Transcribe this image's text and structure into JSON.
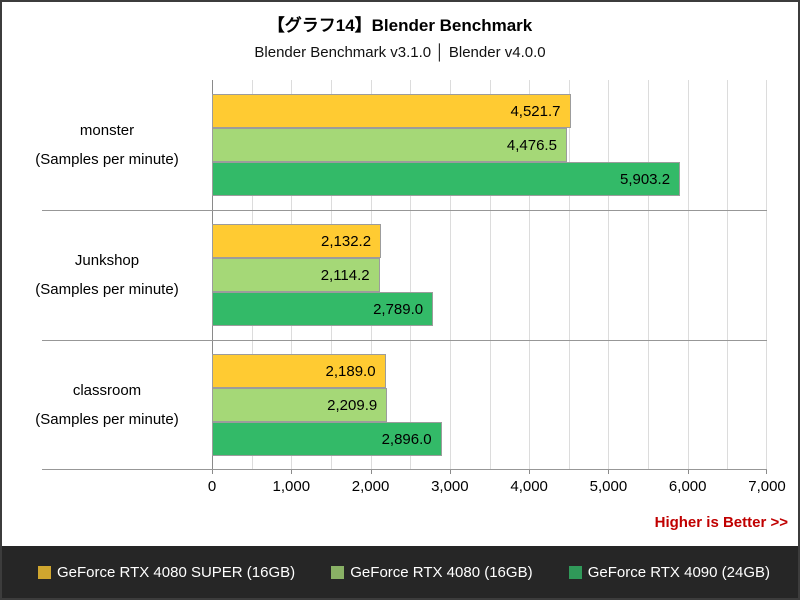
{
  "header": {
    "title": "【グラフ14】Blender Benchmark",
    "subtitle": "Blender Benchmark v3.1.0 │ Blender v4.0.0"
  },
  "note": {
    "text": "Higher is Better >>",
    "color": "#C00000"
  },
  "legend": {
    "position": "bottom",
    "background": "#262626",
    "text_color": "#FFFFFF"
  },
  "colors": {
    "gridline": "#DCDCDC",
    "axis_line": "#8A8A8A",
    "separator_line": "#979797",
    "bar_border": "#9C9C9C",
    "frame_border": "#3C3C3C"
  },
  "chart_data": {
    "type": "bar",
    "orientation": "horizontal",
    "title": "【グラフ14】Blender Benchmark",
    "subtitle": "Blender Benchmark v3.1.0 │ Blender v4.0.0",
    "categories": [
      "monster",
      "Junkshop",
      "classroom"
    ],
    "category_sublabel": "(Samples per minute)",
    "series": [
      {
        "name": "GeForce RTX 4080 SUPER (16GB)",
        "color": "#FFCB32",
        "values": [
          4521.7,
          2132.2,
          2189.0
        ],
        "value_labels": [
          "4,521.7",
          "2,132.2",
          "2,189.0"
        ]
      },
      {
        "name": "GeForce RTX 4080 (16GB)",
        "color": "#A5D877",
        "values": [
          4476.5,
          2114.2,
          2209.9
        ],
        "value_labels": [
          "4,476.5",
          "2,114.2",
          "2,209.9"
        ]
      },
      {
        "name": "GeForce RTX 4090 (24GB)",
        "color": "#33BA68",
        "values": [
          5903.2,
          2789.0,
          2896.0
        ],
        "value_labels": [
          "5,903.2",
          "2,789.0",
          "2,896.0"
        ]
      }
    ],
    "xlim": [
      0,
      7000
    ],
    "x_tick_values": [
      0,
      1000,
      2000,
      3000,
      4000,
      5000,
      6000,
      7000
    ],
    "x_tick_labels": [
      "0",
      "1,000",
      "2,000",
      "3,000",
      "4,000",
      "5,000",
      "6,000",
      "7,000"
    ],
    "gridline_step": 500,
    "grid": true,
    "legend_position": "bottom"
  }
}
